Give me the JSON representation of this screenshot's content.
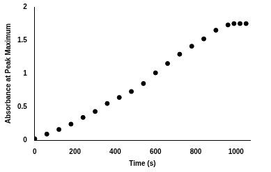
{
  "chart_data": {
    "type": "scatter",
    "x_label": "Time (s)",
    "y_label": "Absorbance at Peak Maximum",
    "x": [
      0,
      60,
      120,
      180,
      240,
      300,
      360,
      420,
      480,
      540,
      600,
      660,
      720,
      780,
      840,
      900,
      960,
      990,
      1020,
      1050
    ],
    "values": [
      0.02,
      0.09,
      0.16,
      0.24,
      0.34,
      0.43,
      0.55,
      0.64,
      0.73,
      0.85,
      1.01,
      1.15,
      1.29,
      1.41,
      1.52,
      1.65,
      1.73,
      1.75,
      1.75,
      1.75
    ],
    "color": "#000000",
    "marker": "circle",
    "xlim": [
      0,
      1070
    ],
    "xticks": [
      0,
      200,
      400,
      600,
      800,
      1000
    ],
    "ylim": [
      0,
      2
    ],
    "yticks": [
      0,
      0.5,
      1,
      1.5,
      2
    ],
    "grid": false
  }
}
